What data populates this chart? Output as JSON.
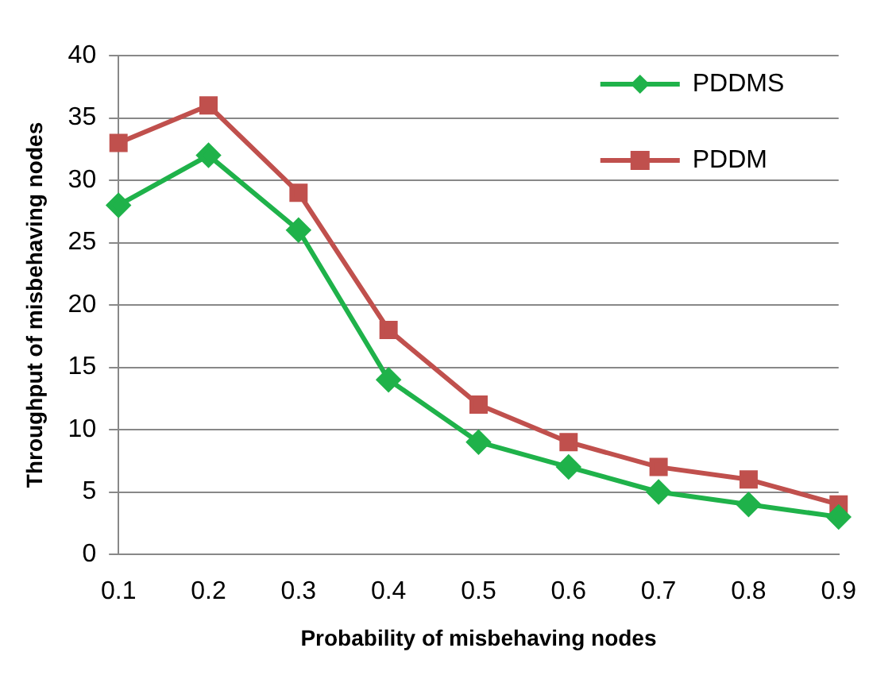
{
  "chart_data": {
    "type": "line",
    "xlabel": "Probability of misbehaving nodes",
    "ylabel": "Throughput of misbehaving nodes",
    "categories": [
      "0.1",
      "0.2",
      "0.3",
      "0.4",
      "0.5",
      "0.6",
      "0.7",
      "0.8",
      "0.9"
    ],
    "series": [
      {
        "name": "PDDMS",
        "color": "#1fb24a",
        "marker": "diamond",
        "values": [
          28,
          32,
          26,
          14,
          9,
          7,
          5,
          4,
          3
        ]
      },
      {
        "name": "PDDM",
        "color": "#c0504d",
        "marker": "square",
        "values": [
          33,
          36,
          29,
          18,
          12,
          9,
          7,
          6,
          4
        ]
      }
    ],
    "ylim": [
      0,
      40
    ],
    "yticks": [
      0,
      5,
      10,
      15,
      20,
      25,
      30,
      35,
      40
    ],
    "grid": "y",
    "legend": "top right"
  }
}
